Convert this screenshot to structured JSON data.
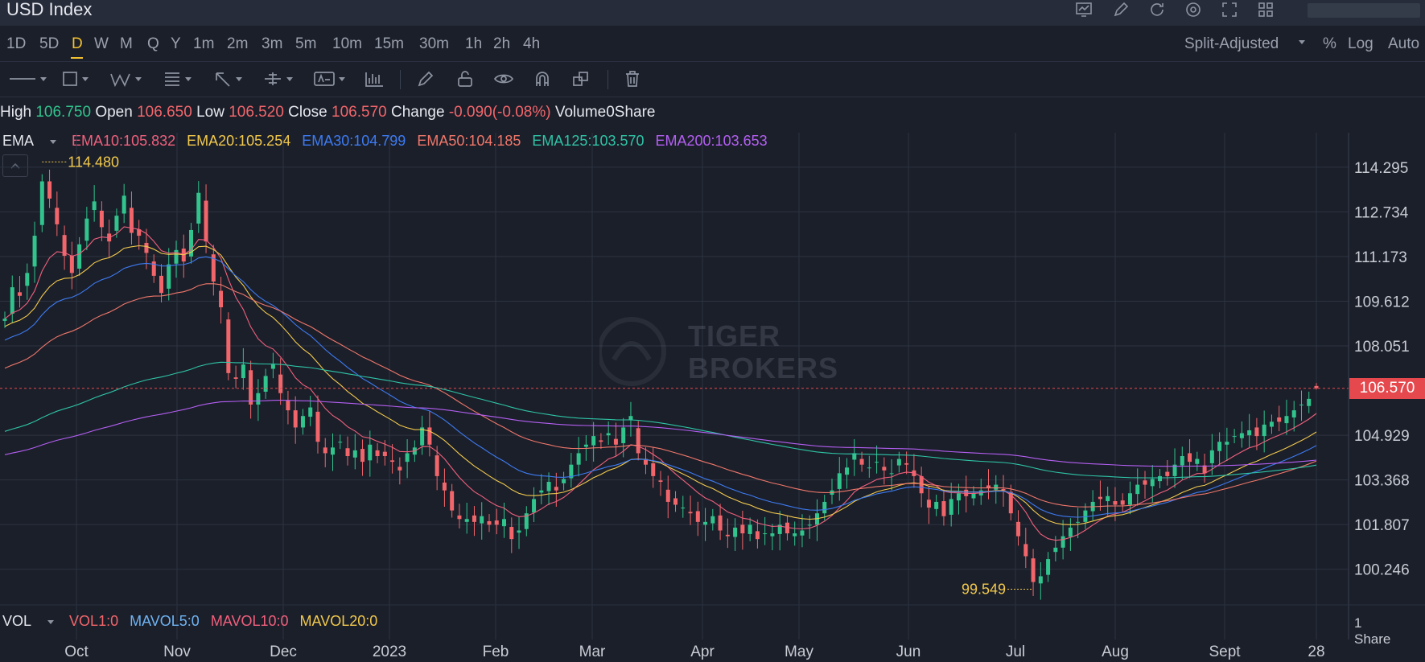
{
  "window": {
    "title": "USD Index"
  },
  "toolbar_icons": [
    "chart-icon",
    "edit-icon",
    "refresh-icon",
    "settings-icon",
    "expand-icon",
    "grid-icon"
  ],
  "timeframes": [
    "1D",
    "5D",
    "D",
    "W",
    "M",
    "Q",
    "Y",
    "1m",
    "2m",
    "3m",
    "5m",
    "10m",
    "15m",
    "30m",
    "1h",
    "2h",
    "4h"
  ],
  "active_timeframe": "D",
  "price_controls": {
    "adjust": "Split-Adjusted",
    "percent": "%",
    "log": "Log",
    "auto": "Auto"
  },
  "drawing_tools": [
    "line-tool-icon",
    "rect-tool-icon",
    "wave-tool-icon",
    "fib-tool-icon",
    "arrow-tool-icon",
    "measure-tool-icon",
    "text-tool-icon",
    "pattern-tool-icon",
    "pencil-icon",
    "lock-icon",
    "eye-icon",
    "magnet-icon",
    "clone-icon",
    "trash-icon"
  ],
  "ohlc": {
    "high_label": "High",
    "high": "106.750",
    "open_label": "Open",
    "open": "106.650",
    "low_label": "Low",
    "low": "106.520",
    "close_label": "Close",
    "close": "106.570",
    "change_label": "Change",
    "change": "-0.090(-0.08%)",
    "volume_label": "Volume",
    "volume": "0Share"
  },
  "ema": {
    "label": "EMA",
    "items": [
      {
        "text": "EMA10:105.832",
        "color": "#f0607d"
      },
      {
        "text": "EMA20:105.254",
        "color": "#f2c94c"
      },
      {
        "text": "EMA30:104.799",
        "color": "#3d7bf2"
      },
      {
        "text": "EMA50:104.185",
        "color": "#f0776a"
      },
      {
        "text": "EMA125:103.570",
        "color": "#2ec4a6"
      },
      {
        "text": "EMA200:103.653",
        "color": "#b45ff2"
      }
    ]
  },
  "vol": {
    "label": "VOL",
    "items": [
      {
        "text": "VOL1:0",
        "color": "#f2666b"
      },
      {
        "text": "MAVOL5:0",
        "color": "#6fb3f2"
      },
      {
        "text": "MAVOL10:0",
        "color": "#f0607d"
      },
      {
        "text": "MAVOL20:0",
        "color": "#f2c94c"
      }
    ],
    "axis_value": "1",
    "axis_unit": "Share"
  },
  "watermark": {
    "line1": "TIGER",
    "line2": "BROKERS"
  },
  "current_price_tag": "106.570",
  "colors": {
    "up": "#31c48d",
    "down": "#f2666b",
    "grid": "#2c3342",
    "background": "#1b1f2a"
  },
  "chart_data": {
    "type": "line",
    "title": "USD Index",
    "subtype": "candlestick",
    "yticks": [
      114.295,
      112.734,
      111.173,
      109.612,
      108.051,
      104.929,
      103.368,
      101.807,
      100.246
    ],
    "ylim": [
      99.0,
      115.5
    ],
    "current_price": 106.57,
    "xticks": [
      "Oct",
      "Nov",
      "Dec",
      "2023",
      "Feb",
      "Mar",
      "Apr",
      "May",
      "Jun",
      "Jul",
      "Aug",
      "Sept",
      "28"
    ],
    "annotations": [
      {
        "text": "114.480",
        "value": 114.48
      },
      {
        "text": "99.549",
        "value": 99.549
      }
    ],
    "close_series": [
      109.0,
      110.1,
      109.8,
      110.6,
      111.9,
      113.8,
      113.2,
      112.3,
      111.2,
      110.6,
      111.6,
      112.5,
      113.1,
      112.2,
      111.7,
      112.6,
      113.3,
      112.0,
      111.9,
      111.3,
      110.5,
      109.9,
      110.9,
      111.4,
      111.0,
      112.1,
      113.4,
      111.7,
      110.3,
      109.4,
      107.1,
      106.9,
      107.4,
      106.0,
      106.4,
      107.0,
      107.4,
      106.4,
      105.8,
      105.2,
      105.6,
      105.9,
      104.7,
      104.3,
      104.5,
      104.7,
      104.2,
      104.4,
      104.0,
      104.6,
      104.2,
      104.2,
      104.0,
      103.7,
      104.3,
      104.5,
      105.2,
      104.6,
      103.5,
      103.0,
      102.3,
      102.0,
      102.0,
      101.9,
      102.1,
      101.8,
      101.8,
      102.0,
      101.3,
      101.6,
      102.2,
      102.7,
      103.0,
      103.3,
      103.0,
      103.4,
      103.9,
      104.3,
      104.6,
      104.9,
      104.7,
      105.0,
      104.6,
      105.2,
      105.6,
      104.3,
      103.9,
      103.5,
      103.3,
      102.6,
      102.5,
      102.4,
      102.2,
      101.9,
      101.9,
      102.1,
      101.6,
      101.4,
      101.7,
      101.5,
      101.8,
      101.3,
      101.5,
      101.5,
      101.8,
      101.5,
      101.5,
      101.6,
      101.8,
      102.2,
      102.6,
      103.0,
      103.6,
      103.8,
      104.3,
      103.9,
      103.8,
      104.0,
      103.7,
      103.6,
      104.1,
      103.9,
      103.5,
      102.9,
      102.4,
      102.6,
      102.1,
      102.7,
      102.9,
      102.8,
      102.9,
      103.0,
      103.1,
      103.2,
      103.0,
      102.2,
      101.4,
      100.7,
      99.8,
      100.0,
      100.6,
      101.0,
      101.4,
      101.7,
      101.9,
      102.3,
      102.6,
      102.7,
      102.8,
      102.5,
      102.5,
      102.9,
      103.2,
      103.2,
      103.4,
      103.5,
      103.5,
      103.9,
      104.2,
      104.0,
      104.1,
      103.6,
      104.4,
      104.7,
      104.7,
      104.9,
      105.0,
      105.1,
      104.9,
      105.3,
      105.4,
      105.4,
      105.6,
      105.8,
      106.0,
      106.2,
      106.57
    ]
  }
}
